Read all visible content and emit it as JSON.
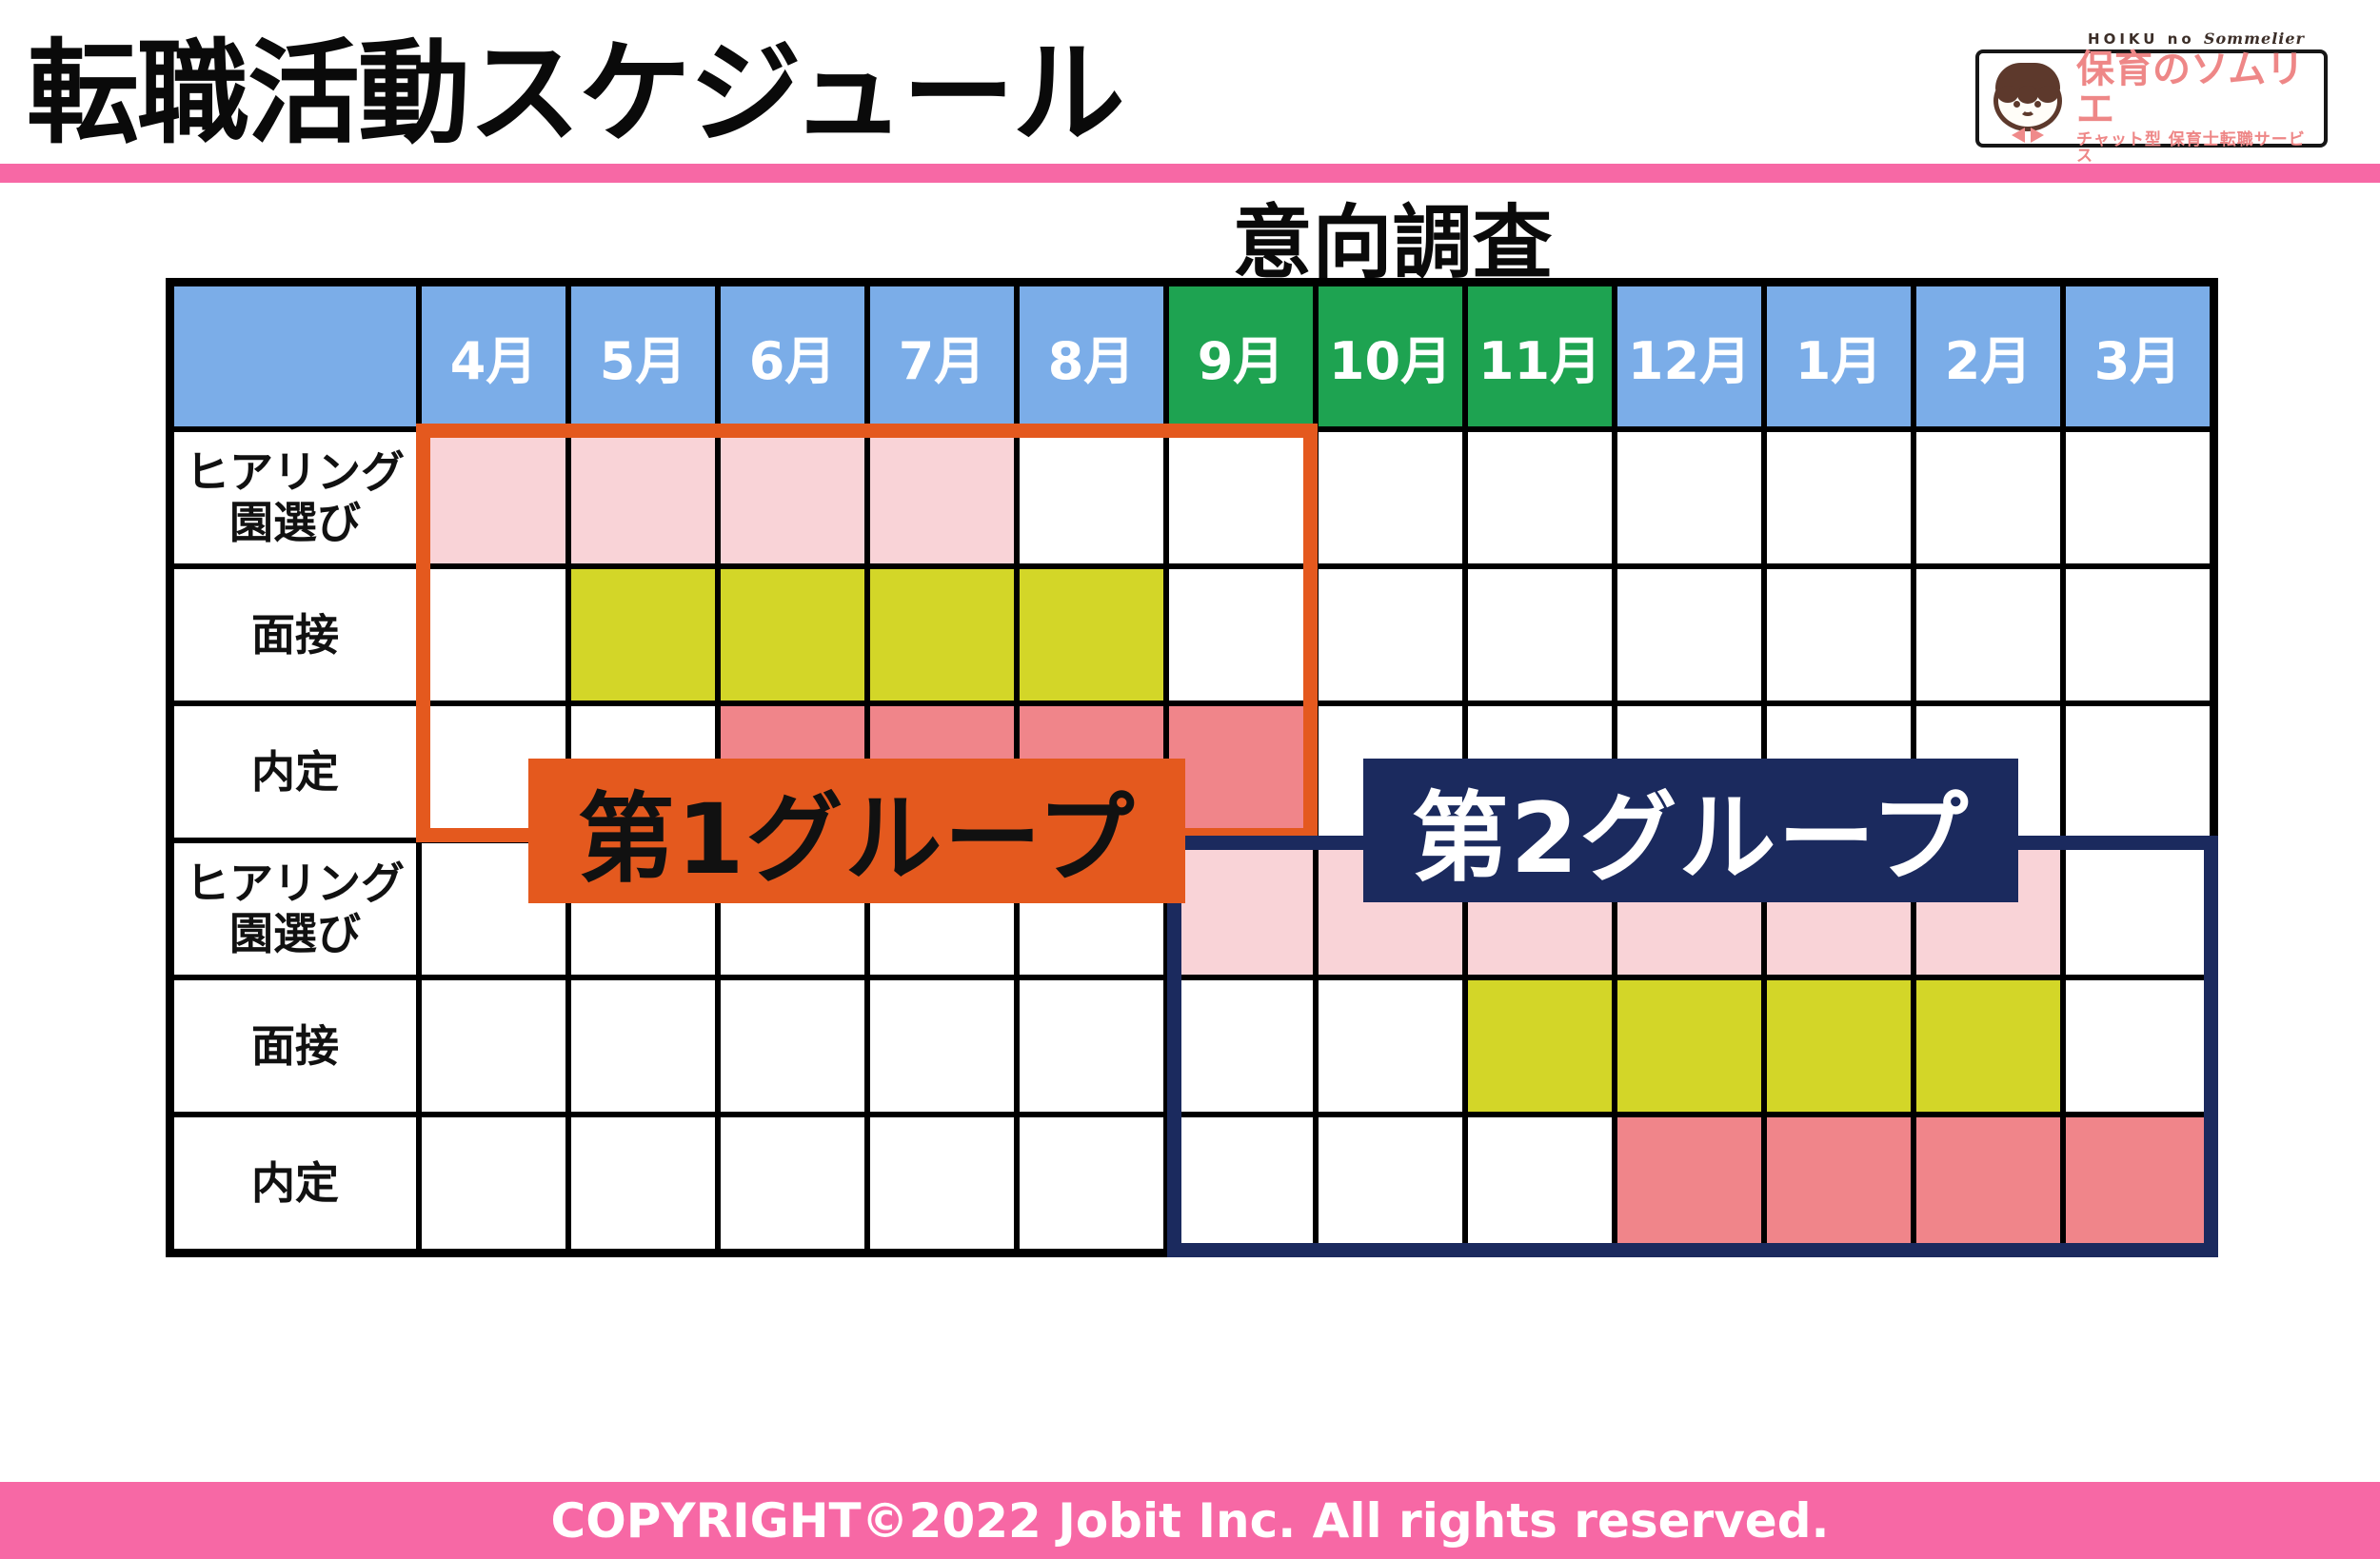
{
  "header": {
    "title": "転職活動スケジュール"
  },
  "logo": {
    "top_text": "HOIKU no",
    "top_script": "Sommelier",
    "main_text": "保育のソムリエ",
    "sub_text": "チャット型 保育士転職サービス",
    "coral": "#ee8787",
    "hair_brown": "#5d392c"
  },
  "annotation": "意向調査",
  "footer": {
    "text": "COPYRIGHT©2022 Jobit Inc. All rights reserved."
  },
  "colors": {
    "header_blue": "#7badе8",
    "header_blue_fix": "#7bade8",
    "header_green": "#1ea351",
    "pink": "#f9d3d7",
    "yellow": "#d3d628",
    "salmon": "#f0858a",
    "orange": "#e4591e",
    "navy": "#1b2a5e",
    "hotpink": "#f768a5",
    "grid_black": "#000000",
    "cell_white": "#ffffff"
  },
  "chart_data": {
    "type": "table",
    "title": "転職活動スケジュール",
    "description": "Gantt-style job-change schedule over a fiscal year, two cohorts",
    "months": [
      "4月",
      "5月",
      "6月",
      "7月",
      "8月",
      "9月",
      "10月",
      "11月",
      "12月",
      "1月",
      "2月",
      "3月"
    ],
    "intention_survey_months": [
      "9月",
      "10月",
      "11月"
    ],
    "rows": [
      {
        "label": "ヒアリング\n園選び",
        "group": 1,
        "color_key": "pink",
        "active_months": [
          "4月",
          "5月",
          "6月",
          "7月"
        ]
      },
      {
        "label": "面接",
        "group": 1,
        "color_key": "yellow",
        "active_months": [
          "5月",
          "6月",
          "7月",
          "8月"
        ]
      },
      {
        "label": "内定",
        "group": 1,
        "color_key": "salmon",
        "active_months": [
          "6月",
          "7月",
          "8月",
          "9月"
        ]
      },
      {
        "label": "ヒアリング\n園選び",
        "group": 2,
        "color_key": "pink",
        "active_months": [
          "9月",
          "10月",
          "11月",
          "12月",
          "1月",
          "2月"
        ]
      },
      {
        "label": "面接",
        "group": 2,
        "color_key": "yellow",
        "active_months": [
          "11月",
          "12月",
          "1月",
          "2月"
        ]
      },
      {
        "label": "内定",
        "group": 2,
        "color_key": "salmon",
        "active_months": [
          "12月",
          "1月",
          "2月",
          "3月"
        ]
      }
    ],
    "groups": [
      {
        "label": "第1グループ",
        "month_span": [
          "4月",
          "9月"
        ],
        "row_span": [
          1,
          3
        ],
        "color_key": "orange"
      },
      {
        "label": "第2グループ",
        "month_span": [
          "9月",
          "3月"
        ],
        "row_span": [
          4,
          6
        ],
        "color_key": "navy"
      }
    ],
    "legend_position": "none",
    "grid": true
  }
}
